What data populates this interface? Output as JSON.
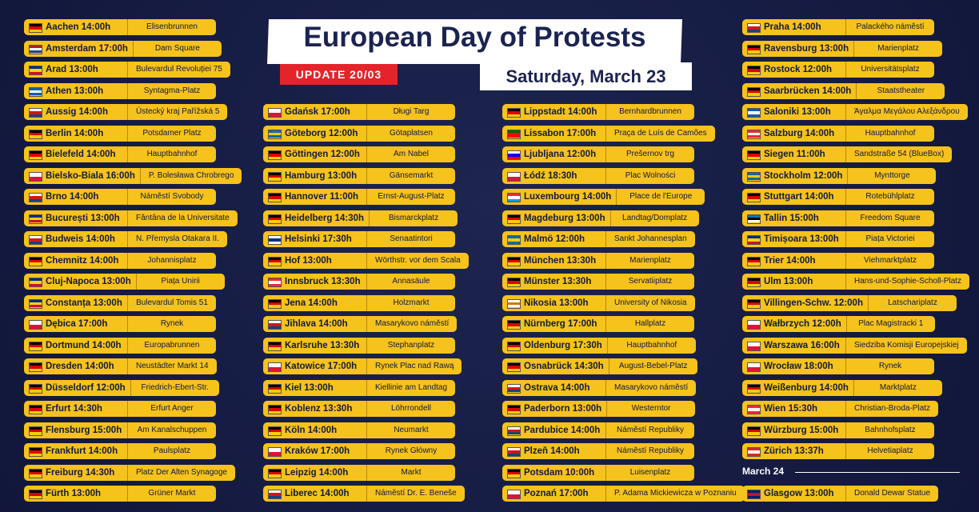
{
  "header": {
    "title": "European Day of Protests",
    "update": "UPDATE 20/03",
    "date": "Saturday, March 23"
  },
  "columns": [
    {
      "entries": [
        {
          "city": "Aachen 14:00h",
          "place": "Elisenbrunnen",
          "flag": [
            "#000000",
            "#dd0000",
            "#ffce00"
          ]
        },
        {
          "city": "Amsterdam 17:00h",
          "place": "Dam Square",
          "flag": [
            "#ae1c28",
            "#ffffff",
            "#21468b"
          ]
        },
        {
          "city": "Arad 13:00h",
          "place": "Bulevardul Revoluției 75",
          "flag": [
            "#002b7f",
            "#fcd116",
            "#ce1126"
          ]
        },
        {
          "city": "Athen 13:00h",
          "place": "Syntagma-Platz",
          "flag": [
            "#0d5eaf",
            "#ffffff",
            "#0d5eaf"
          ]
        },
        {
          "city": "Aussig 14:00h",
          "place": "Ústecký kraj Pařížská 5",
          "flag": [
            "#ffffff",
            "#d7141a",
            "#11457e"
          ]
        },
        {
          "city": "Berlin 14:00h",
          "place": "Potsdamer Platz",
          "flag": [
            "#000000",
            "#dd0000",
            "#ffce00"
          ]
        },
        {
          "city": "Bielefeld 14:00h",
          "place": "Hauptbahnhof",
          "flag": [
            "#000000",
            "#dd0000",
            "#ffce00"
          ]
        },
        {
          "city": "Bielsko-Biala 16:00h",
          "place": "P. Bolesława Chrobrego",
          "flag": [
            "#ffffff",
            "#dc143c"
          ]
        },
        {
          "city": "Brno 14:00h",
          "place": "Náměstí Svobody",
          "flag": [
            "#ffffff",
            "#d7141a",
            "#11457e"
          ]
        },
        {
          "city": "București 13:00h",
          "place": "Fântâna de la Universitate",
          "flag": [
            "#002b7f",
            "#fcd116",
            "#ce1126"
          ]
        },
        {
          "city": "Budweis 14:00h",
          "place": "N. Přemysla Otakara II.",
          "flag": [
            "#ffffff",
            "#d7141a",
            "#11457e"
          ]
        },
        {
          "city": "Chemnitz 14:00h",
          "place": "Johannisplatz",
          "flag": [
            "#000000",
            "#dd0000",
            "#ffce00"
          ]
        },
        {
          "city": "Cluj-Napoca 13:00h",
          "place": "Piața Unirii",
          "flag": [
            "#002b7f",
            "#fcd116",
            "#ce1126"
          ]
        },
        {
          "city": "Constanța 13:00h",
          "place": "Bulevardul Tomis 51",
          "flag": [
            "#002b7f",
            "#fcd116",
            "#ce1126"
          ]
        },
        {
          "city": "Dębica 17:00h",
          "place": "Rynek",
          "flag": [
            "#ffffff",
            "#dc143c"
          ]
        },
        {
          "city": "Dortmund 14:00h",
          "place": "Europabrunnen",
          "flag": [
            "#000000",
            "#dd0000",
            "#ffce00"
          ]
        },
        {
          "city": "Dresden 14:00h",
          "place": "Neustädter Markt 14",
          "flag": [
            "#000000",
            "#dd0000",
            "#ffce00"
          ]
        },
        {
          "city": "Düsseldorf 12:00h",
          "place": "Friedrich-Ebert-Str.",
          "flag": [
            "#000000",
            "#dd0000",
            "#ffce00"
          ]
        },
        {
          "city": "Erfurt 14:30h",
          "place": "Erfurt Anger",
          "flag": [
            "#000000",
            "#dd0000",
            "#ffce00"
          ]
        },
        {
          "city": "Flensburg 15:00h",
          "place": "Am Kanalschuppen",
          "flag": [
            "#000000",
            "#dd0000",
            "#ffce00"
          ]
        },
        {
          "city": "Frankfurt 14:00h",
          "place": "Paulsplatz",
          "flag": [
            "#000000",
            "#dd0000",
            "#ffce00"
          ]
        },
        {
          "city": "Freiburg 14:30h",
          "place": "Platz Der Alten Synagoge",
          "flag": [
            "#000000",
            "#dd0000",
            "#ffce00"
          ]
        },
        {
          "city": "Fürth 13:00h",
          "place": "Grüner Markt",
          "flag": [
            "#000000",
            "#dd0000",
            "#ffce00"
          ]
        }
      ]
    },
    {
      "entries": [
        {
          "city": "Gdańsk 17:00h",
          "place": "Długi Targ",
          "flag": [
            "#ffffff",
            "#dc143c"
          ]
        },
        {
          "city": "Göteborg 12:00h",
          "place": "Götaplatsen",
          "flag": [
            "#006aa7",
            "#fecc00",
            "#006aa7"
          ]
        },
        {
          "city": "Göttingen 12:00h",
          "place": "Am Nabel",
          "flag": [
            "#000000",
            "#dd0000",
            "#ffce00"
          ]
        },
        {
          "city": "Hamburg 13:00h",
          "place": "Gänsemarkt",
          "flag": [
            "#000000",
            "#dd0000",
            "#ffce00"
          ]
        },
        {
          "city": "Hannover 11:00h",
          "place": "Ernst-August-Platz",
          "flag": [
            "#000000",
            "#dd0000",
            "#ffce00"
          ]
        },
        {
          "city": "Heidelberg 14:30h",
          "place": "Bismarckplatz",
          "flag": [
            "#000000",
            "#dd0000",
            "#ffce00"
          ]
        },
        {
          "city": "Helsinki 17:30h",
          "place": "Senaatintori",
          "flag": [
            "#ffffff",
            "#003580",
            "#ffffff"
          ]
        },
        {
          "city": "Hof 13:00h",
          "place": "Wörthstr. vor dem Scala",
          "flag": [
            "#000000",
            "#dd0000",
            "#ffce00"
          ]
        },
        {
          "city": "Innsbruck 13:30h",
          "place": "Annasäule",
          "flag": [
            "#ed2939",
            "#ffffff",
            "#ed2939"
          ]
        },
        {
          "city": "Jena 14:00h",
          "place": "Holzmarkt",
          "flag": [
            "#000000",
            "#dd0000",
            "#ffce00"
          ]
        },
        {
          "city": "Jihlava 14:00h",
          "place": "Masarykovo náměstí",
          "flag": [
            "#ffffff",
            "#d7141a",
            "#11457e"
          ]
        },
        {
          "city": "Karlsruhe 13:30h",
          "place": "Stephanplatz",
          "flag": [
            "#000000",
            "#dd0000",
            "#ffce00"
          ]
        },
        {
          "city": "Katowice 17:00h",
          "place": "Rynek Plac nad Rawą",
          "flag": [
            "#ffffff",
            "#dc143c"
          ]
        },
        {
          "city": "Kiel 13:00h",
          "place": "Kiellinie am Landtag",
          "flag": [
            "#000000",
            "#dd0000",
            "#ffce00"
          ]
        },
        {
          "city": "Koblenz 13:30h",
          "place": "Löhrrondell",
          "flag": [
            "#000000",
            "#dd0000",
            "#ffce00"
          ]
        },
        {
          "city": "Köln 14:00h",
          "place": "Neumarkt",
          "flag": [
            "#000000",
            "#dd0000",
            "#ffce00"
          ]
        },
        {
          "city": "Kraków 17:00h",
          "place": "Rynek Główny",
          "flag": [
            "#ffffff",
            "#dc143c"
          ]
        },
        {
          "city": "Leipzig 14:00h",
          "place": "Markt",
          "flag": [
            "#000000",
            "#dd0000",
            "#ffce00"
          ]
        },
        {
          "city": "Liberec 14:00h",
          "place": "Náměstí Dr. E. Beneše",
          "flag": [
            "#ffffff",
            "#d7141a",
            "#11457e"
          ]
        }
      ]
    },
    {
      "entries": [
        {
          "city": "Lippstadt 14:00h",
          "place": "Bernhardbrunnen",
          "flag": [
            "#000000",
            "#dd0000",
            "#ffce00"
          ]
        },
        {
          "city": "Lissabon 17:00h",
          "place": "Praça de Luís de Camões",
          "flag": [
            "#006600",
            "#ff0000",
            "#ff0000"
          ]
        },
        {
          "city": "Ljubljana 12:00h",
          "place": "Prešernov trg",
          "flag": [
            "#ffffff",
            "#0000ff",
            "#ff0000"
          ]
        },
        {
          "city": "Łódź 18:30h",
          "place": "Plac Wolności",
          "flag": [
            "#ffffff",
            "#dc143c"
          ]
        },
        {
          "city": "Luxembourg 14:00h",
          "place": "Place de l'Europe",
          "flag": [
            "#ed2939",
            "#ffffff",
            "#00a1de"
          ]
        },
        {
          "city": "Magdeburg 13:00h",
          "place": "Landtag/Domplatz",
          "flag": [
            "#000000",
            "#dd0000",
            "#ffce00"
          ]
        },
        {
          "city": "Malmö 12:00h",
          "place": "Sankt Johannesplan",
          "flag": [
            "#006aa7",
            "#fecc00",
            "#006aa7"
          ]
        },
        {
          "city": "München 13:30h",
          "place": "Marienplatz",
          "flag": [
            "#000000",
            "#dd0000",
            "#ffce00"
          ]
        },
        {
          "city": "Münster 13:30h",
          "place": "Servatiiplatz",
          "flag": [
            "#000000",
            "#dd0000",
            "#ffce00"
          ]
        },
        {
          "city": "Nikosia 13:00h",
          "place": "University of Nikosia",
          "flag": [
            "#ffffff",
            "#d57800",
            "#ffffff"
          ]
        },
        {
          "city": "Nürnberg 17:00h",
          "place": "Hallplatz",
          "flag": [
            "#000000",
            "#dd0000",
            "#ffce00"
          ]
        },
        {
          "city": "Oldenburg 17:30h",
          "place": "Hauptbahnhof",
          "flag": [
            "#000000",
            "#dd0000",
            "#ffce00"
          ]
        },
        {
          "city": "Osnabrück 14:30h",
          "place": "August-Bebel-Platz",
          "flag": [
            "#000000",
            "#dd0000",
            "#ffce00"
          ]
        },
        {
          "city": "Ostrava 14:00h",
          "place": "Masarykovo náměstí",
          "flag": [
            "#ffffff",
            "#d7141a",
            "#11457e"
          ]
        },
        {
          "city": "Paderborn 13:00h",
          "place": "Westerntor",
          "flag": [
            "#000000",
            "#dd0000",
            "#ffce00"
          ]
        },
        {
          "city": "Pardubice 14:00h",
          "place": "Náměstí Republiky",
          "flag": [
            "#ffffff",
            "#d7141a",
            "#11457e"
          ]
        },
        {
          "city": "Plzeň 14:00h",
          "place": "Náměstí Republiky",
          "flag": [
            "#ffffff",
            "#d7141a",
            "#11457e"
          ]
        },
        {
          "city": "Potsdam 10:00h",
          "place": "Luisenplatz",
          "flag": [
            "#000000",
            "#dd0000",
            "#ffce00"
          ]
        },
        {
          "city": "Poznań 17:00h",
          "place": "P. Adama Mickiewicza w Poznaniu",
          "flag": [
            "#ffffff",
            "#dc143c"
          ]
        }
      ]
    },
    {
      "entries": [
        {
          "city": "Praha 14:00h",
          "place": "Palackého náměstí",
          "flag": [
            "#ffffff",
            "#d7141a",
            "#11457e"
          ]
        },
        {
          "city": "Ravensburg 13:00h",
          "place": "Marienplatz",
          "flag": [
            "#000000",
            "#dd0000",
            "#ffce00"
          ]
        },
        {
          "city": "Rostock 12:00h",
          "place": "Universitätsplatz",
          "flag": [
            "#000000",
            "#dd0000",
            "#ffce00"
          ]
        },
        {
          "city": "Saarbrücken 14:00h",
          "place": "Staatstheater",
          "flag": [
            "#000000",
            "#dd0000",
            "#ffce00"
          ]
        },
        {
          "city": "Saloniki 13:00h",
          "place": "Άγαλμα Μεγάλου Αλεξάνδρου",
          "flag": [
            "#0d5eaf",
            "#ffffff",
            "#0d5eaf"
          ]
        },
        {
          "city": "Salzburg 14:00h",
          "place": "Hauptbahnhof",
          "flag": [
            "#ed2939",
            "#ffffff",
            "#ed2939"
          ]
        },
        {
          "city": "Siegen 11:00h",
          "place": "Sandstraße 54 (BlueBox)",
          "flag": [
            "#000000",
            "#dd0000",
            "#ffce00"
          ]
        },
        {
          "city": "Stockholm 12:00h",
          "place": "Mynttorge",
          "flag": [
            "#006aa7",
            "#fecc00",
            "#006aa7"
          ]
        },
        {
          "city": "Stuttgart 14:00h",
          "place": "Rotebühlplatz",
          "flag": [
            "#000000",
            "#dd0000",
            "#ffce00"
          ]
        },
        {
          "city": "Tallin 15:00h",
          "place": "Freedom Square",
          "flag": [
            "#0072ce",
            "#000000",
            "#ffffff"
          ]
        },
        {
          "city": "Timișoara 13:00h",
          "place": "Piața Victoriei",
          "flag": [
            "#002b7f",
            "#fcd116",
            "#ce1126"
          ]
        },
        {
          "city": "Trier 14:00h",
          "place": "Viehmarktplatz",
          "flag": [
            "#000000",
            "#dd0000",
            "#ffce00"
          ]
        },
        {
          "city": "Ulm 13:00h",
          "place": "Hans-und-Sophie-Scholl-Platz",
          "flag": [
            "#000000",
            "#dd0000",
            "#ffce00"
          ]
        },
        {
          "city": "Villingen-Schw. 12:00h",
          "place": "Latschariplatz",
          "flag": [
            "#000000",
            "#dd0000",
            "#ffce00"
          ]
        },
        {
          "city": "Wałbrzych 12:00h",
          "place": "Plac Magistracki 1",
          "flag": [
            "#ffffff",
            "#dc143c"
          ]
        },
        {
          "city": "Warszawa 16:00h",
          "place": "Siedziba Komisji Europejskiej",
          "flag": [
            "#ffffff",
            "#dc143c"
          ]
        },
        {
          "city": "Wrocław 18:00h",
          "place": "Rynek",
          "flag": [
            "#ffffff",
            "#dc143c"
          ]
        },
        {
          "city": "Weißenburg 14:00h",
          "place": "Marktplatz",
          "flag": [
            "#000000",
            "#dd0000",
            "#ffce00"
          ]
        },
        {
          "city": "Wien 15:30h",
          "place": "Christian-Broda-Platz",
          "flag": [
            "#ed2939",
            "#ffffff",
            "#ed2939"
          ]
        },
        {
          "city": "Würzburg 15:00h",
          "place": "Bahnhofsplatz",
          "flag": [
            "#000000",
            "#dd0000",
            "#ffce00"
          ]
        },
        {
          "city": "Zürich 13:37h",
          "place": "Helvetiaplatz",
          "flag": [
            "#d52b1e",
            "#ffffff",
            "#d52b1e"
          ]
        }
      ],
      "section": {
        "label": "March 24",
        "entries": [
          {
            "city": "Glasgow 13:00h",
            "place": "Donald Dewar Statue",
            "flag": [
              "#012169",
              "#c8102e",
              "#012169"
            ]
          }
        ]
      }
    }
  ]
}
